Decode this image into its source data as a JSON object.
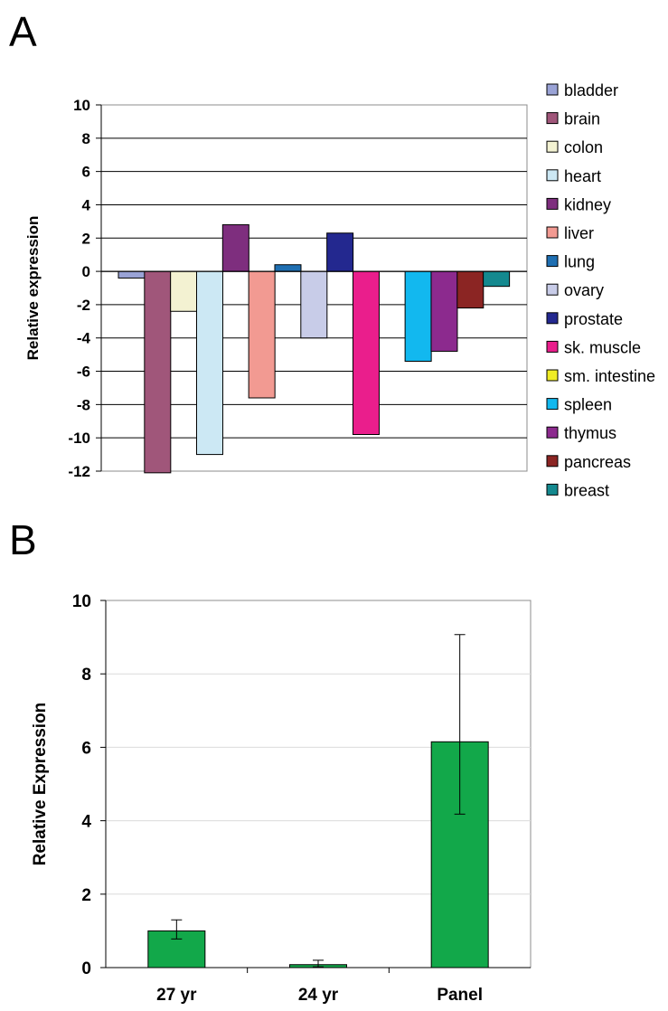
{
  "panels": {
    "a_label": "A",
    "b_label": "B"
  },
  "chart_data": [
    {
      "type": "bar",
      "title": "",
      "ylabel": "Relative expression",
      "xlabel": "",
      "ylim": [
        -12,
        10
      ],
      "yticks": [
        10,
        8,
        6,
        4,
        2,
        0,
        -2,
        -4,
        -6,
        -8,
        -10,
        -12
      ],
      "grid": true,
      "legend_position": "right",
      "series": [
        {
          "name": "bladder",
          "value": -0.4,
          "color": "#9aa3d6",
          "slot": 0
        },
        {
          "name": "brain",
          "value": -12.1,
          "color": "#a0567a",
          "slot": 1
        },
        {
          "name": "colon",
          "value": -2.4,
          "color": "#f3f2d2",
          "slot": 2
        },
        {
          "name": "heart",
          "value": -11.0,
          "color": "#cce8f4",
          "slot": 3
        },
        {
          "name": "kidney",
          "value": 2.8,
          "color": "#7e2e7e",
          "slot": 4
        },
        {
          "name": "liver",
          "value": -7.6,
          "color": "#f29a92",
          "slot": 5
        },
        {
          "name": "lung",
          "value": 0.4,
          "color": "#1f6fb2",
          "slot": 6
        },
        {
          "name": "ovary",
          "value": -4.0,
          "color": "#c8cce8",
          "slot": 7
        },
        {
          "name": "prostate",
          "value": 2.3,
          "color": "#23288f",
          "slot": 8
        },
        {
          "name": "sk. muscle",
          "value": -9.8,
          "color": "#ea1e8c",
          "slot": 9
        },
        {
          "name": "sm. intestine",
          "value": 0,
          "color": "#f0ec24",
          "slot": 10
        },
        {
          "name": "spleen",
          "value": -5.4,
          "color": "#12b8ef",
          "slot": 11
        },
        {
          "name": "thymus",
          "value": -4.8,
          "color": "#8c2a8e",
          "slot": 12
        },
        {
          "name": "pancreas",
          "value": -2.2,
          "color": "#8b2523",
          "slot": 13
        },
        {
          "name": "breast",
          "value": -0.9,
          "color": "#14898f",
          "slot": 14
        }
      ]
    },
    {
      "type": "bar",
      "title": "",
      "ylabel": "Relative Expression",
      "xlabel": "",
      "ylim": [
        0,
        10
      ],
      "yticks": [
        0,
        2,
        4,
        6,
        8,
        10
      ],
      "grid": true,
      "bar_color": "#12a84a",
      "categories": [
        "27 yr",
        "24 yr",
        "Panel"
      ],
      "values": [
        1.0,
        0.08,
        6.15
      ],
      "error_low": [
        0.78,
        0.02,
        4.18
      ],
      "error_high": [
        1.3,
        0.2,
        9.07
      ]
    }
  ]
}
